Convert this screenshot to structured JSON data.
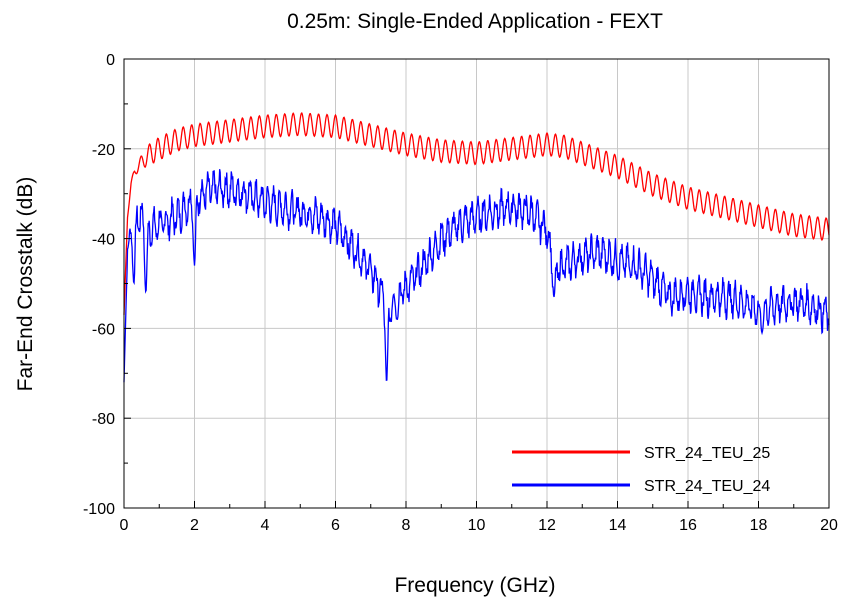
{
  "chart_data": {
    "type": "line",
    "title": "0.25m: Single-Ended Application - FEXT",
    "xlabel": "Frequency (GHz)",
    "ylabel": "Far-End Crosstalk (dB)",
    "xlim": [
      0,
      20
    ],
    "ylim": [
      -100,
      0
    ],
    "xticks": [
      0,
      2,
      4,
      6,
      8,
      10,
      12,
      14,
      16,
      18,
      20
    ],
    "yticks": [
      0,
      -20,
      -40,
      -60,
      -80,
      -100
    ],
    "grid": true,
    "legend_position": "bottom-right",
    "series": [
      {
        "name": "STR_24_TEU_25",
        "color": "#ff0000",
        "x": [
          0,
          0.1,
          0.2,
          0.3,
          0.5,
          0.75,
          1,
          1.5,
          2,
          2.5,
          3,
          3.5,
          4,
          5,
          6,
          7,
          8,
          9,
          10,
          11,
          11.5,
          12,
          12.5,
          13,
          14,
          15,
          16,
          17,
          18,
          19,
          20
        ],
        "y": [
          -57,
          -35,
          -28,
          -25,
          -23,
          -21,
          -20,
          -18,
          -17,
          -16.5,
          -16,
          -15.5,
          -15,
          -14.5,
          -15,
          -17,
          -19,
          -20.5,
          -21,
          -20,
          -19.5,
          -19,
          -19.5,
          -21,
          -24,
          -28,
          -31,
          -33,
          -35,
          -37,
          -38
        ],
        "ripple": 2.5
      },
      {
        "name": "STR_24_TEU_24",
        "color": "#0000ff",
        "x": [
          0,
          0.1,
          0.3,
          0.5,
          0.7,
          1,
          1.5,
          2,
          2.5,
          3,
          3.5,
          4,
          4.5,
          5,
          5.5,
          6,
          6.5,
          7,
          7.3,
          7.5,
          7.8,
          8,
          8.5,
          9,
          9.5,
          10,
          10.5,
          11,
          11.5,
          12,
          12.2,
          12.5,
          13,
          13.5,
          14,
          14.5,
          15,
          15.5,
          16,
          16.5,
          17,
          17.5,
          18,
          18.5,
          19,
          19.5,
          20
        ],
        "y": [
          -72,
          -42,
          -36,
          -35,
          -38,
          -37,
          -35,
          -31,
          -29,
          -29,
          -30,
          -32,
          -33,
          -34,
          -35,
          -37,
          -42,
          -47,
          -52,
          -56,
          -52,
          -51,
          -46,
          -40,
          -37,
          -35,
          -34,
          -33,
          -34,
          -38,
          -47,
          -46,
          -44,
          -43,
          -45,
          -46,
          -49,
          -53,
          -52,
          -53,
          -53,
          -54,
          -56,
          -55,
          -54,
          -55,
          -57
        ],
        "ripple": 5,
        "dips": [
          {
            "x": 0.28,
            "y": -50
          },
          {
            "x": 0.62,
            "y": -52
          },
          {
            "x": 2.0,
            "y": -46
          },
          {
            "x": 7.45,
            "y": -72
          },
          {
            "x": 7.75,
            "y": -58
          },
          {
            "x": 12.2,
            "y": -53
          },
          {
            "x": 18.1,
            "y": -61
          }
        ]
      }
    ]
  }
}
